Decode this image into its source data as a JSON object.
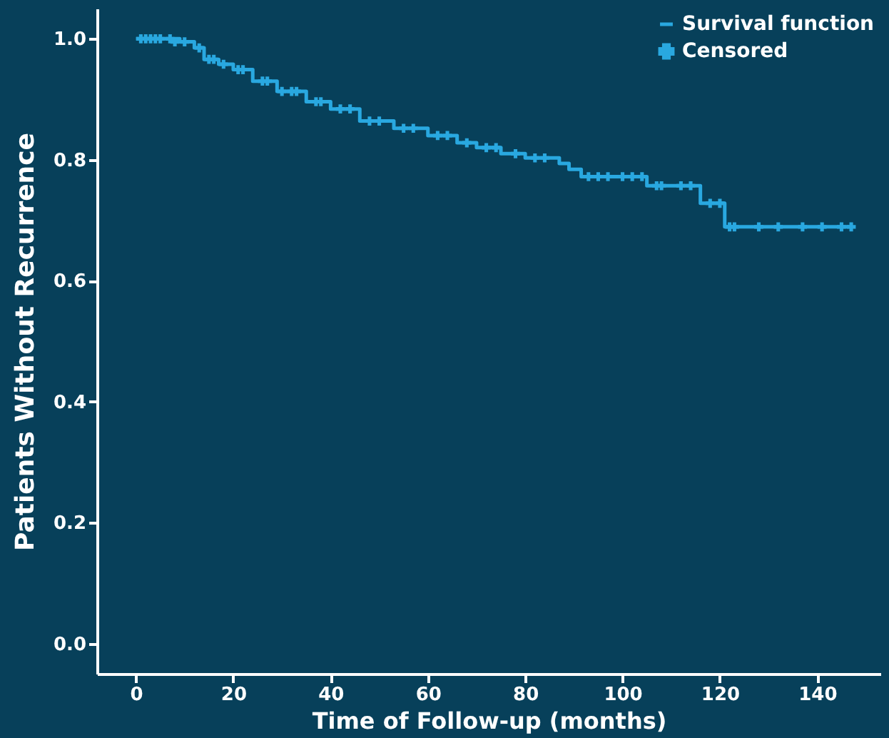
{
  "chart_data": {
    "type": "step",
    "xlabel": "Time of Follow-up (months)",
    "ylabel": "Patients Without Recurrence",
    "xlim": [
      -8,
      153
    ],
    "ylim": [
      -0.05,
      1.05
    ],
    "xticks": [
      0,
      20,
      40,
      60,
      80,
      100,
      120,
      140
    ],
    "yticks": [
      {
        "value": 0,
        "label": "0.0"
      },
      0.2,
      0.4,
      0.6,
      0.8,
      {
        "value": 1,
        "label": "1.0"
      }
    ],
    "grid": false,
    "legend": "top right",
    "series": [
      {
        "name": "Survival function",
        "type": "step",
        "line_style": "solid",
        "color": "#29a8e0",
        "x": [
          0,
          9,
          12,
          14,
          17,
          20,
          24,
          29,
          35,
          40,
          46,
          53,
          60,
          66,
          70,
          75,
          80,
          87,
          89,
          91.5,
          105,
          116,
          121,
          147
        ],
        "values": [
          1.0,
          0.995,
          0.985,
          0.966,
          0.958,
          0.949,
          0.93,
          0.913,
          0.896,
          0.884,
          0.864,
          0.852,
          0.84,
          0.828,
          0.82,
          0.81,
          0.803,
          0.794,
          0.784,
          0.772,
          0.757,
          0.728,
          0.689,
          0.689
        ]
      },
      {
        "name": "Censored",
        "type": "scatter",
        "marker": "cross",
        "color": "#29a8e0",
        "x": [
          1,
          2,
          3,
          4,
          5,
          7,
          8,
          10,
          13,
          15,
          16,
          18,
          21,
          22,
          26,
          27,
          30,
          32,
          33,
          37,
          38,
          42,
          44,
          48,
          50,
          55,
          57,
          62,
          64,
          68,
          72,
          74,
          78,
          82,
          84,
          93,
          95,
          97,
          100,
          102,
          104,
          107,
          108,
          112,
          114,
          118,
          120,
          122,
          123,
          128,
          132,
          137,
          141,
          145,
          147
        ],
        "values": [
          1.0,
          1.0,
          1.0,
          1.0,
          1.0,
          1.0,
          0.995,
          0.995,
          0.985,
          0.966,
          0.966,
          0.958,
          0.949,
          0.949,
          0.93,
          0.93,
          0.913,
          0.913,
          0.913,
          0.896,
          0.896,
          0.884,
          0.884,
          0.864,
          0.864,
          0.852,
          0.852,
          0.84,
          0.84,
          0.828,
          0.82,
          0.82,
          0.81,
          0.803,
          0.803,
          0.772,
          0.772,
          0.772,
          0.772,
          0.772,
          0.772,
          0.757,
          0.757,
          0.757,
          0.757,
          0.728,
          0.728,
          0.689,
          0.689,
          0.689,
          0.689,
          0.689,
          0.689,
          0.689,
          0.689
        ]
      }
    ]
  }
}
